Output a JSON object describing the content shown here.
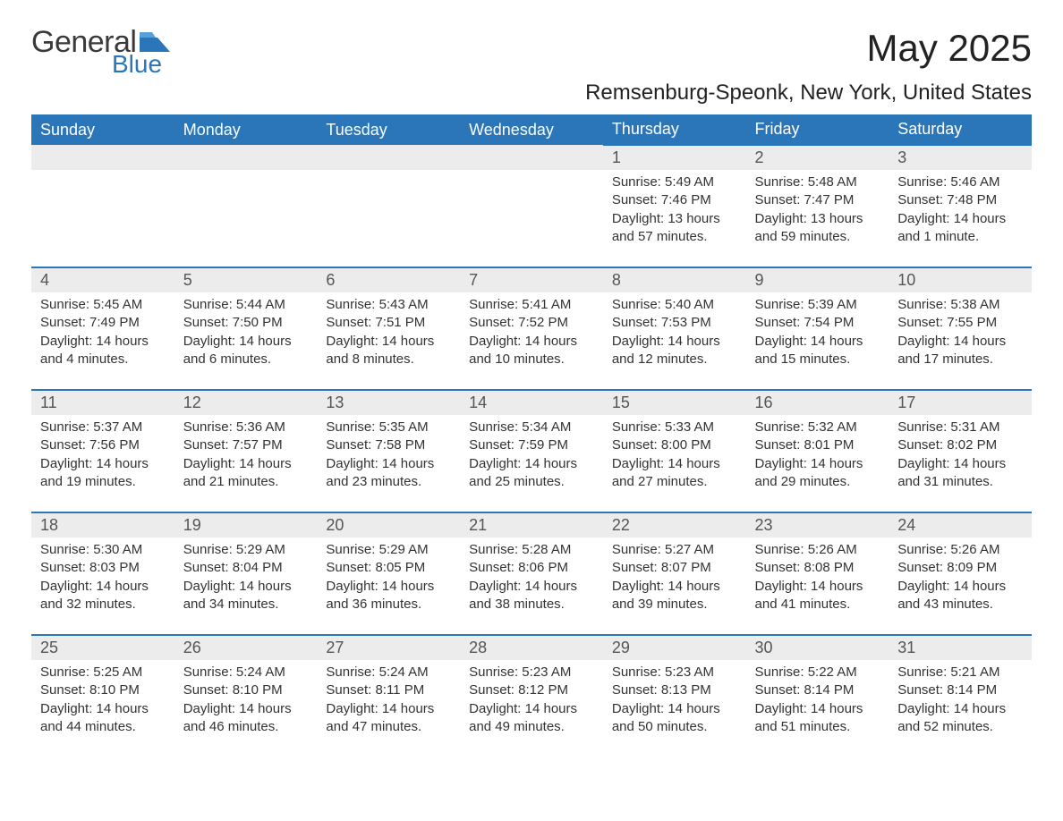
{
  "brand": {
    "word1": "General",
    "word2": "Blue"
  },
  "title": "May 2025",
  "location": "Remsenburg-Speonk, New York, United States",
  "colors": {
    "header_blue": "#2a76b9",
    "row_gray": "#ececec",
    "text": "#333333",
    "day_text": "#555555"
  },
  "dow": [
    "Sunday",
    "Monday",
    "Tuesday",
    "Wednesday",
    "Thursday",
    "Friday",
    "Saturday"
  ],
  "weeks": [
    [
      null,
      null,
      null,
      null,
      {
        "d": "1",
        "sr": "5:49 AM",
        "ss": "7:46 PM",
        "dl": "13 hours and 57 minutes."
      },
      {
        "d": "2",
        "sr": "5:48 AM",
        "ss": "7:47 PM",
        "dl": "13 hours and 59 minutes."
      },
      {
        "d": "3",
        "sr": "5:46 AM",
        "ss": "7:48 PM",
        "dl": "14 hours and 1 minute."
      }
    ],
    [
      {
        "d": "4",
        "sr": "5:45 AM",
        "ss": "7:49 PM",
        "dl": "14 hours and 4 minutes."
      },
      {
        "d": "5",
        "sr": "5:44 AM",
        "ss": "7:50 PM",
        "dl": "14 hours and 6 minutes."
      },
      {
        "d": "6",
        "sr": "5:43 AM",
        "ss": "7:51 PM",
        "dl": "14 hours and 8 minutes."
      },
      {
        "d": "7",
        "sr": "5:41 AM",
        "ss": "7:52 PM",
        "dl": "14 hours and 10 minutes."
      },
      {
        "d": "8",
        "sr": "5:40 AM",
        "ss": "7:53 PM",
        "dl": "14 hours and 12 minutes."
      },
      {
        "d": "9",
        "sr": "5:39 AM",
        "ss": "7:54 PM",
        "dl": "14 hours and 15 minutes."
      },
      {
        "d": "10",
        "sr": "5:38 AM",
        "ss": "7:55 PM",
        "dl": "14 hours and 17 minutes."
      }
    ],
    [
      {
        "d": "11",
        "sr": "5:37 AM",
        "ss": "7:56 PM",
        "dl": "14 hours and 19 minutes."
      },
      {
        "d": "12",
        "sr": "5:36 AM",
        "ss": "7:57 PM",
        "dl": "14 hours and 21 minutes."
      },
      {
        "d": "13",
        "sr": "5:35 AM",
        "ss": "7:58 PM",
        "dl": "14 hours and 23 minutes."
      },
      {
        "d": "14",
        "sr": "5:34 AM",
        "ss": "7:59 PM",
        "dl": "14 hours and 25 minutes."
      },
      {
        "d": "15",
        "sr": "5:33 AM",
        "ss": "8:00 PM",
        "dl": "14 hours and 27 minutes."
      },
      {
        "d": "16",
        "sr": "5:32 AM",
        "ss": "8:01 PM",
        "dl": "14 hours and 29 minutes."
      },
      {
        "d": "17",
        "sr": "5:31 AM",
        "ss": "8:02 PM",
        "dl": "14 hours and 31 minutes."
      }
    ],
    [
      {
        "d": "18",
        "sr": "5:30 AM",
        "ss": "8:03 PM",
        "dl": "14 hours and 32 minutes."
      },
      {
        "d": "19",
        "sr": "5:29 AM",
        "ss": "8:04 PM",
        "dl": "14 hours and 34 minutes."
      },
      {
        "d": "20",
        "sr": "5:29 AM",
        "ss": "8:05 PM",
        "dl": "14 hours and 36 minutes."
      },
      {
        "d": "21",
        "sr": "5:28 AM",
        "ss": "8:06 PM",
        "dl": "14 hours and 38 minutes."
      },
      {
        "d": "22",
        "sr": "5:27 AM",
        "ss": "8:07 PM",
        "dl": "14 hours and 39 minutes."
      },
      {
        "d": "23",
        "sr": "5:26 AM",
        "ss": "8:08 PM",
        "dl": "14 hours and 41 minutes."
      },
      {
        "d": "24",
        "sr": "5:26 AM",
        "ss": "8:09 PM",
        "dl": "14 hours and 43 minutes."
      }
    ],
    [
      {
        "d": "25",
        "sr": "5:25 AM",
        "ss": "8:10 PM",
        "dl": "14 hours and 44 minutes."
      },
      {
        "d": "26",
        "sr": "5:24 AM",
        "ss": "8:10 PM",
        "dl": "14 hours and 46 minutes."
      },
      {
        "d": "27",
        "sr": "5:24 AM",
        "ss": "8:11 PM",
        "dl": "14 hours and 47 minutes."
      },
      {
        "d": "28",
        "sr": "5:23 AM",
        "ss": "8:12 PM",
        "dl": "14 hours and 49 minutes."
      },
      {
        "d": "29",
        "sr": "5:23 AM",
        "ss": "8:13 PM",
        "dl": "14 hours and 50 minutes."
      },
      {
        "d": "30",
        "sr": "5:22 AM",
        "ss": "8:14 PM",
        "dl": "14 hours and 51 minutes."
      },
      {
        "d": "31",
        "sr": "5:21 AM",
        "ss": "8:14 PM",
        "dl": "14 hours and 52 minutes."
      }
    ]
  ],
  "labels": {
    "sunrise": "Sunrise: ",
    "sunset": "Sunset: ",
    "daylight": "Daylight: "
  }
}
